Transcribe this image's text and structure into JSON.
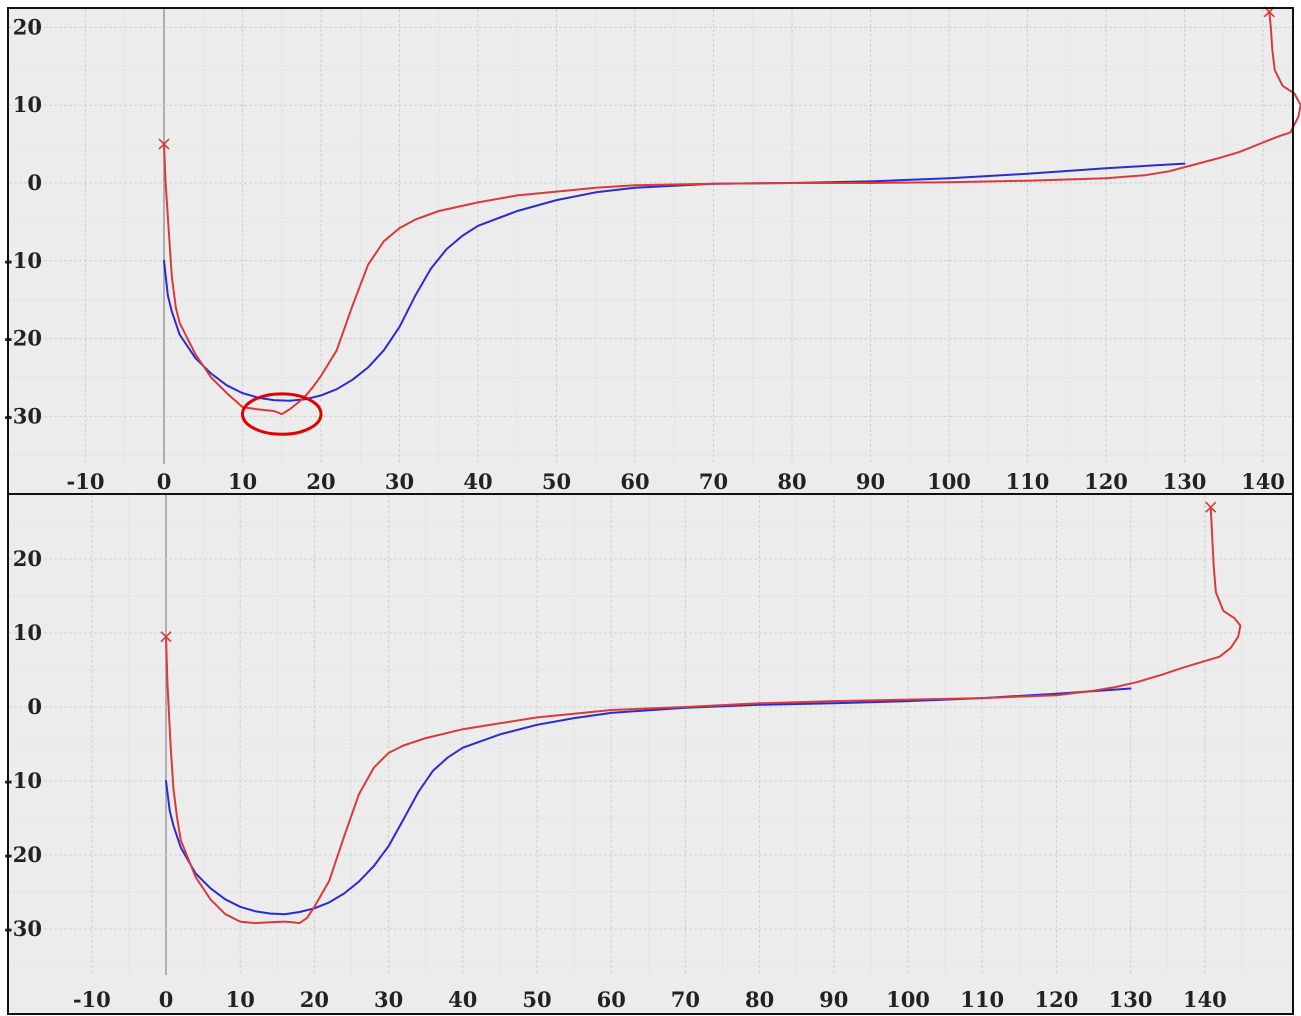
{
  "colors": {
    "background": "#ececec",
    "major_grid": "#cfcfcf",
    "minor_grid": "#dedede",
    "zero_axis": "#9a9a9a",
    "series_blue": "#2b2bd0",
    "series_red": "#d93a3a",
    "highlight_ellipse": "#e00000",
    "border": "#111111"
  },
  "chart_data": [
    {
      "type": "line",
      "title": "",
      "xlabel": "",
      "ylabel": "",
      "xlim": [
        -12,
        143
      ],
      "ylim": [
        -36,
        22
      ],
      "xticks": [
        -10,
        0,
        10,
        20,
        30,
        40,
        50,
        60,
        70,
        80,
        90,
        100,
        110,
        120,
        130,
        140
      ],
      "yticks": [
        20,
        10,
        0,
        -10,
        -20,
        -30
      ],
      "xtick_labels": [
        "-10",
        "0",
        "10",
        "20",
        "30",
        "40",
        "50",
        "60",
        "70",
        "80",
        "90",
        "100",
        "110",
        "120",
        "130",
        "140"
      ],
      "ytick_labels": [
        "20",
        "10",
        "0",
        "-10",
        "-20",
        "-30"
      ],
      "grid": true,
      "series": [
        {
          "color": "#2b2bd0",
          "x": [
            0,
            0.5,
            1,
            2,
            4,
            6,
            8,
            10,
            12,
            14,
            16,
            18,
            20,
            22,
            24,
            26,
            28,
            30,
            32,
            34,
            36,
            38,
            40,
            45,
            50,
            55,
            60,
            70,
            80,
            90,
            100,
            110,
            120,
            130
          ],
          "y": [
            -10,
            -14.5,
            -16.5,
            -19.5,
            -22.5,
            -24.5,
            -26,
            -27,
            -27.6,
            -27.9,
            -28,
            -27.8,
            -27.3,
            -26.5,
            -25.3,
            -23.7,
            -21.5,
            -18.5,
            -14.5,
            -11,
            -8.5,
            -6.8,
            -5.5,
            -3.6,
            -2.2,
            -1.2,
            -0.6,
            -0.1,
            0,
            0.2,
            0.6,
            1.2,
            1.9,
            2.5
          ]
        },
        {
          "color": "#d93a3a",
          "x": [
            0,
            0.2,
            0.6,
            1,
            1.5,
            2,
            4,
            6,
            8,
            10,
            12,
            14,
            15,
            16,
            17,
            18,
            19,
            20,
            22,
            24,
            26,
            28,
            30,
            32,
            35,
            40,
            45,
            50,
            55,
            60,
            70,
            80,
            90,
            100,
            110,
            120,
            125,
            128,
            131,
            134,
            137,
            140,
            142,
            143.5,
            144.5,
            144.8,
            144,
            142.5,
            141.5,
            141.2,
            141,
            140.8
          ],
          "y": [
            5,
            0,
            -6,
            -12,
            -16,
            -18,
            -22,
            -25,
            -27,
            -28.8,
            -29.1,
            -29.3,
            -29.7,
            -29.1,
            -28.3,
            -27.4,
            -26.2,
            -24.8,
            -21.5,
            -15.8,
            -10.5,
            -7.5,
            -5.8,
            -4.7,
            -3.6,
            -2.5,
            -1.6,
            -1.1,
            -0.6,
            -0.3,
            -0.1,
            0,
            0,
            0.1,
            0.3,
            0.6,
            1,
            1.5,
            2.3,
            3.1,
            4,
            5.2,
            6,
            6.5,
            8.5,
            10,
            11.5,
            12.5,
            14.5,
            17,
            20,
            22
          ]
        }
      ],
      "annotations": [
        {
          "type": "ellipse",
          "center": [
            15,
            -29.7
          ],
          "radius_data": [
            5,
            2.6
          ],
          "color": "#e00000"
        },
        {
          "type": "marker",
          "symbol": "x",
          "at": [
            0,
            5
          ],
          "color": "#d93a3a"
        },
        {
          "type": "marker",
          "symbol": "x",
          "at": [
            140.8,
            22
          ],
          "color": "#d93a3a"
        }
      ]
    },
    {
      "type": "line",
      "title": "",
      "xlabel": "",
      "ylabel": "",
      "xlim": [
        -12,
        151
      ],
      "ylim": [
        -35,
        28
      ],
      "xticks": [
        -10,
        0,
        10,
        20,
        30,
        40,
        50,
        60,
        70,
        80,
        90,
        100,
        110,
        120,
        130,
        140
      ],
      "yticks": [
        20,
        10,
        0,
        -10,
        -20,
        -30
      ],
      "xtick_labels": [
        "-10",
        "0",
        "10",
        "20",
        "30",
        "40",
        "50",
        "60",
        "70",
        "80",
        "90",
        "100",
        "110",
        "120",
        "130",
        "140"
      ],
      "ytick_labels": [
        "20",
        "10",
        "0",
        "-10",
        "-20",
        "-30"
      ],
      "grid": true,
      "series": [
        {
          "color": "#2b2bd0",
          "x": [
            0,
            0.5,
            1,
            2,
            4,
            6,
            8,
            10,
            12,
            14,
            16,
            18,
            20,
            22,
            24,
            26,
            28,
            30,
            32,
            34,
            36,
            38,
            40,
            45,
            50,
            55,
            60,
            70,
            80,
            90,
            100,
            110,
            120,
            130
          ],
          "y": [
            -10,
            -14,
            -16,
            -19,
            -22.5,
            -24.5,
            -26,
            -27,
            -27.6,
            -27.9,
            -28,
            -27.7,
            -27.2,
            -26.4,
            -25.2,
            -23.6,
            -21.5,
            -18.8,
            -15.2,
            -11.5,
            -8.6,
            -6.8,
            -5.5,
            -3.7,
            -2.4,
            -1.5,
            -0.8,
            -0.1,
            0.3,
            0.5,
            0.8,
            1.2,
            1.8,
            2.5
          ]
        },
        {
          "color": "#d93a3a",
          "x": [
            0,
            0.2,
            0.6,
            1,
            1.5,
            2,
            4,
            6,
            8,
            10,
            12,
            14,
            16,
            17,
            18,
            19,
            20,
            22,
            24,
            26,
            28,
            30,
            32,
            35,
            40,
            45,
            50,
            55,
            60,
            70,
            80,
            90,
            100,
            110,
            120,
            125,
            128,
            131,
            134,
            137,
            140,
            142,
            143.5,
            144.5,
            144.8,
            144,
            142.5,
            141.5,
            141.2,
            141,
            140.8
          ],
          "y": [
            9.5,
            3,
            -5,
            -11,
            -15,
            -18,
            -23,
            -26,
            -28,
            -29,
            -29.2,
            -29.1,
            -29,
            -29.1,
            -29.2,
            -28.5,
            -27,
            -23.5,
            -17.5,
            -11.8,
            -8.2,
            -6.2,
            -5.2,
            -4.2,
            -3.0,
            -2.2,
            -1.4,
            -0.9,
            -0.4,
            0,
            0.5,
            0.8,
            1,
            1.2,
            1.6,
            2.2,
            2.7,
            3.4,
            4.3,
            5.3,
            6.2,
            6.8,
            8,
            9.5,
            11,
            12,
            13,
            15.5,
            19,
            23,
            27
          ]
        }
      ],
      "annotations": [
        {
          "type": "marker",
          "symbol": "x",
          "at": [
            0,
            9.5
          ],
          "color": "#d93a3a"
        },
        {
          "type": "marker",
          "symbol": "x",
          "at": [
            140.8,
            27
          ],
          "color": "#d93a3a"
        }
      ]
    }
  ]
}
